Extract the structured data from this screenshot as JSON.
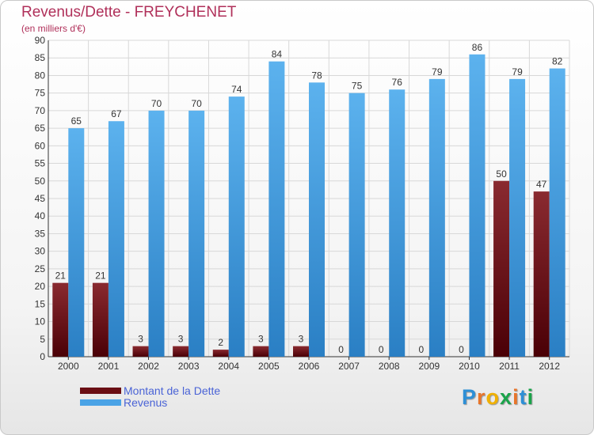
{
  "title": "Revenus/Dette - FREYCHENET",
  "subtitle": "(en milliers d'€)",
  "logo_text": "Proxiti",
  "colors": {
    "title": "#b0305a",
    "dette": "#7a1a22",
    "revenus": "#3f98dc",
    "legend_text": "#4a63d6",
    "grid": "#d8d8d8"
  },
  "legend": [
    {
      "label": "Montant de la Dette",
      "color": "#6a0e14"
    },
    {
      "label": "Revenus",
      "color": "#4aa3e6"
    }
  ],
  "chart_data": {
    "type": "bar",
    "title": "Revenus/Dette - FREYCHENET",
    "subtitle": "(en milliers d'€)",
    "categories": [
      "2000",
      "2001",
      "2002",
      "2003",
      "2004",
      "2005",
      "2006",
      "2007",
      "2008",
      "2009",
      "2010",
      "2011",
      "2012"
    ],
    "series": [
      {
        "name": "Montant de la Dette",
        "values": [
          21,
          21,
          3,
          3,
          2,
          3,
          3,
          0,
          0,
          0,
          0,
          50,
          47
        ]
      },
      {
        "name": "Revenus",
        "values": [
          65,
          67,
          70,
          70,
          74,
          84,
          78,
          75,
          76,
          79,
          86,
          79,
          82
        ]
      }
    ],
    "yticks": [
      0,
      5,
      10,
      15,
      20,
      25,
      30,
      35,
      40,
      45,
      50,
      55,
      60,
      65,
      70,
      75,
      80,
      85,
      90
    ],
    "ylim": [
      0,
      90
    ],
    "grid": true,
    "legend_position": "bottom-left"
  }
}
